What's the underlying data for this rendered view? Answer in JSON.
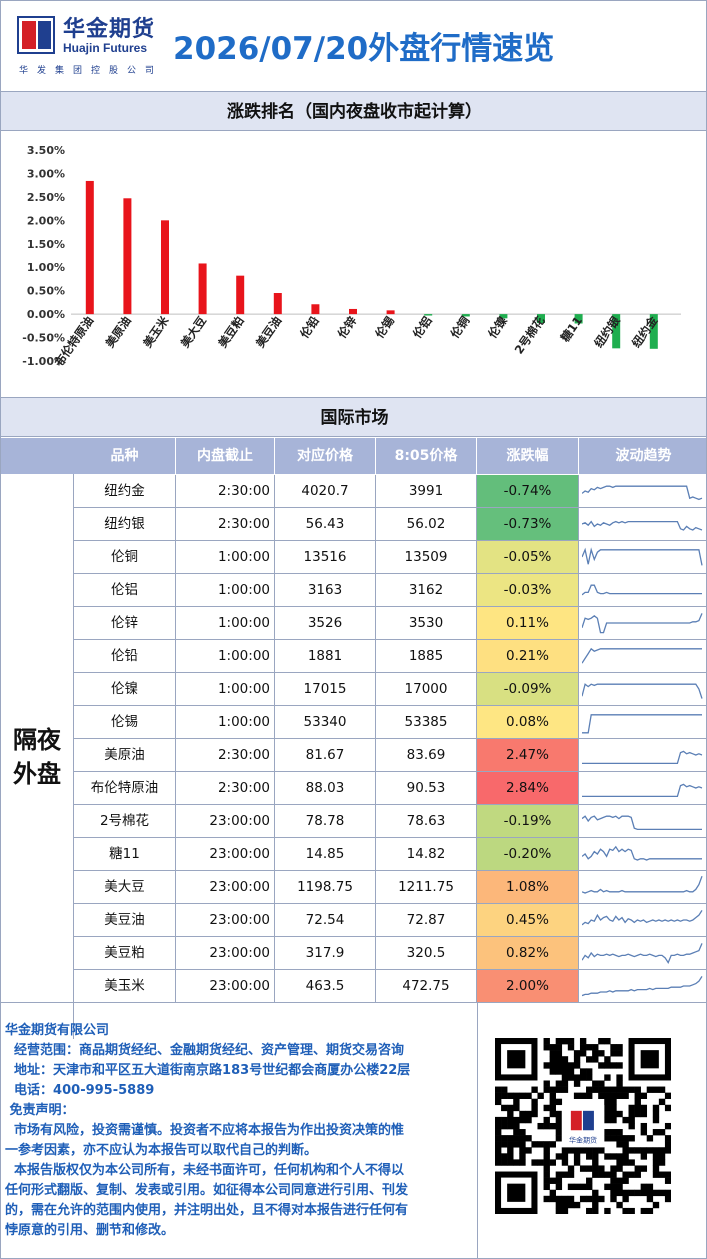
{
  "header": {
    "company_cn": "华金期货",
    "company_en": "Huajin Futures",
    "group": "华发集团控股公司",
    "title": "2026/07/20外盘行情速览"
  },
  "ranking_section": {
    "title": "涨跌排名（国内夜盘收市起计算）"
  },
  "chart_data": {
    "type": "bar",
    "title": "",
    "categories": [
      "布伦特原油",
      "美原油",
      "美玉米",
      "美大豆",
      "美豆粕",
      "美豆油",
      "伦铅",
      "伦锌",
      "伦锡",
      "伦铝",
      "伦铜",
      "伦镍",
      "2号棉花",
      "糖11",
      "纽约银",
      "纽约金"
    ],
    "values": [
      2.84,
      2.47,
      2.0,
      1.08,
      0.82,
      0.45,
      0.21,
      0.11,
      0.08,
      -0.03,
      -0.05,
      -0.09,
      -0.19,
      -0.2,
      -0.73,
      -0.74
    ],
    "yticks": [
      "3.50%",
      "3.00%",
      "2.50%",
      "2.00%",
      "1.50%",
      "1.00%",
      "0.50%",
      "0.00%",
      "-0.50%",
      "-1.00%"
    ],
    "ylim": [
      -1.0,
      3.5
    ],
    "up_color": "#e8141b",
    "down_color": "#1fae4f"
  },
  "market_section": {
    "title": "国际市场"
  },
  "table": {
    "headers": [
      "品种",
      "内盘截止",
      "对应价格",
      "8:05价格",
      "涨跌幅",
      "波动趋势"
    ],
    "side_label": "隔夜外盘",
    "rows": [
      {
        "name": "纽约金",
        "close": "2:30:00",
        "price": "4020.7",
        "now": "3991",
        "chg": "-0.74%",
        "color": "#63be7b"
      },
      {
        "name": "纽约银",
        "close": "2:30:00",
        "price": "56.43",
        "now": "56.02",
        "chg": "-0.73%",
        "color": "#65bf7c"
      },
      {
        "name": "伦铜",
        "close": "1:00:00",
        "price": "13516",
        "now": "13509",
        "chg": "-0.05%",
        "color": "#e3e383"
      },
      {
        "name": "伦铝",
        "close": "1:00:00",
        "price": "3163",
        "now": "3162",
        "chg": "-0.03%",
        "color": "#ece583"
      },
      {
        "name": "伦锌",
        "close": "1:00:00",
        "price": "3526",
        "now": "3530",
        "chg": "0.11%",
        "color": "#fee582"
      },
      {
        "name": "伦铅",
        "close": "1:00:00",
        "price": "1881",
        "now": "1885",
        "chg": "0.21%",
        "color": "#fee081"
      },
      {
        "name": "伦镍",
        "close": "1:00:00",
        "price": "17015",
        "now": "17000",
        "chg": "-0.09%",
        "color": "#d8e082"
      },
      {
        "name": "伦锡",
        "close": "1:00:00",
        "price": "53340",
        "now": "53385",
        "chg": "0.08%",
        "color": "#fee683"
      },
      {
        "name": "美原油",
        "close": "2:30:00",
        "price": "81.67",
        "now": "83.69",
        "chg": "2.47%",
        "color": "#f8796e"
      },
      {
        "name": "布伦特原油",
        "close": "2:30:00",
        "price": "88.03",
        "now": "90.53",
        "chg": "2.84%",
        "color": "#f8696b"
      },
      {
        "name": "2号棉花",
        "close": "23:00:00",
        "price": "78.78",
        "now": "78.63",
        "chg": "-0.19%",
        "color": "#c0d980"
      },
      {
        "name": "糖11",
        "close": "23:00:00",
        "price": "14.85",
        "now": "14.82",
        "chg": "-0.20%",
        "color": "#bcd880"
      },
      {
        "name": "美大豆",
        "close": "23:00:00",
        "price": "1198.75",
        "now": "1211.75",
        "chg": "1.08%",
        "color": "#fcb77a"
      },
      {
        "name": "美豆油",
        "close": "23:00:00",
        "price": "72.54",
        "now": "72.87",
        "chg": "0.45%",
        "color": "#fdd380"
      },
      {
        "name": "美豆粕",
        "close": "23:00:00",
        "price": "317.9",
        "now": "320.5",
        "chg": "0.82%",
        "color": "#fcc27c"
      },
      {
        "name": "美玉米",
        "close": "23:00:00",
        "price": "463.5",
        "now": "472.75",
        "chg": "2.00%",
        "color": "#f98f73"
      }
    ]
  },
  "footer": {
    "company": "华金期货有限公司",
    "scope": "  经营范围：商品期货经纪、金融期货经纪、资产管理、期货交易咨询",
    "address": "  地址：天津市和平区五大道街南京路183号世纪都会商厦办公楼22层",
    "phone": "  电话：400-995-5889",
    "disclaimer_title": " 免责声明：",
    "disclaimer_1a": "  市场有风险，投资需谨慎。投资者不应将本报告为作出投资决策的惟",
    "disclaimer_1b": "一参考因素，亦不应认为本报告可以取代自己的判断。",
    "disclaimer_2a": "  本报告版权仅为本公司所有，未经书面许可，任何机构和个人不得以",
    "disclaimer_2b": "任何形式翻版、复制、发表或引用。如征得本公司同意进行引用、刊发",
    "disclaimer_2c": "的，需在允许的范围内使用，并注明出处，且不得对本报告进行任何有",
    "disclaimer_2d": "悖原意的引用、删节和修改。"
  },
  "qr": {
    "center_text": "华金期货"
  }
}
